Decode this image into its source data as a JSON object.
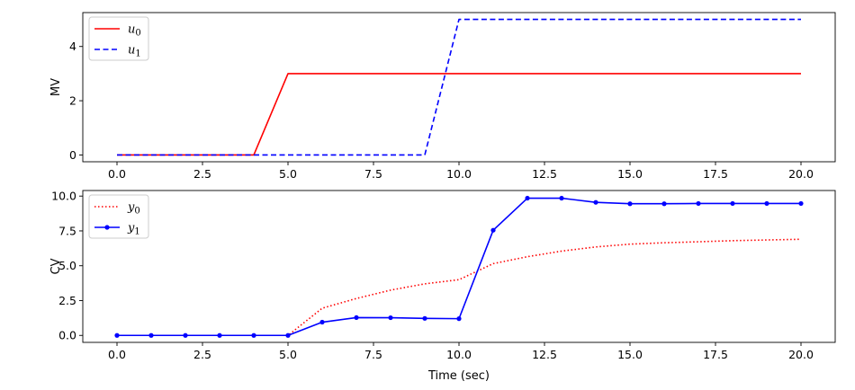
{
  "chart_data": [
    {
      "type": "line",
      "title": "",
      "xlabel": "",
      "ylabel": "MV",
      "xlim": [
        -1,
        21
      ],
      "ylim": [
        -0.25,
        5.25
      ],
      "xticks": [
        0.0,
        2.5,
        5.0,
        7.5,
        10.0,
        12.5,
        15.0,
        17.5,
        20.0
      ],
      "xtick_labels": [
        "0.0",
        "2.5",
        "5.0",
        "7.5",
        "10.0",
        "12.5",
        "15.0",
        "17.5",
        "20.0"
      ],
      "yticks": [
        0,
        2,
        4
      ],
      "ytick_labels": [
        "0",
        "2",
        "4"
      ],
      "grid": false,
      "legend_position": "top-left",
      "series": [
        {
          "name": "u0",
          "legend_base": "u",
          "legend_sub": "0",
          "color": "#ff0000",
          "style": "solid",
          "marker": "none",
          "x": [
            0,
            1,
            2,
            3,
            4,
            5,
            6,
            7,
            8,
            9,
            10,
            11,
            12,
            13,
            14,
            15,
            16,
            17,
            18,
            19,
            20
          ],
          "y": [
            0,
            0,
            0,
            0,
            0,
            3,
            3,
            3,
            3,
            3,
            3,
            3,
            3,
            3,
            3,
            3,
            3,
            3,
            3,
            3,
            3
          ]
        },
        {
          "name": "u1",
          "legend_base": "u",
          "legend_sub": "1",
          "color": "#0000ff",
          "style": "dashed",
          "marker": "none",
          "x": [
            0,
            1,
            2,
            3,
            4,
            5,
            6,
            7,
            8,
            9,
            10,
            11,
            12,
            13,
            14,
            15,
            16,
            17,
            18,
            19,
            20
          ],
          "y": [
            0,
            0,
            0,
            0,
            0,
            0,
            0,
            0,
            0,
            0,
            5,
            5,
            5,
            5,
            5,
            5,
            5,
            5,
            5,
            5,
            5
          ]
        }
      ]
    },
    {
      "type": "line",
      "title": "",
      "xlabel": "Time (sec)",
      "ylabel": "CV",
      "xlim": [
        -1,
        21
      ],
      "ylim": [
        -0.5,
        10.4
      ],
      "xticks": [
        0.0,
        2.5,
        5.0,
        7.5,
        10.0,
        12.5,
        15.0,
        17.5,
        20.0
      ],
      "xtick_labels": [
        "0.0",
        "2.5",
        "5.0",
        "7.5",
        "10.0",
        "12.5",
        "15.0",
        "17.5",
        "20.0"
      ],
      "yticks": [
        0.0,
        2.5,
        5.0,
        7.5,
        10.0
      ],
      "ytick_labels": [
        "0.0",
        "2.5",
        "5.0",
        "7.5",
        "10.0"
      ],
      "grid": false,
      "legend_position": "top-left",
      "series": [
        {
          "name": "y0",
          "legend_base": "y",
          "legend_sub": "0",
          "color": "#ff0000",
          "style": "dotted",
          "marker": "none",
          "x": [
            0,
            1,
            2,
            3,
            4,
            5,
            6,
            7,
            8,
            9,
            10,
            11,
            12,
            13,
            14,
            15,
            16,
            17,
            18,
            19,
            20
          ],
          "y": [
            0,
            0,
            0,
            0,
            0,
            0,
            1.95,
            2.65,
            3.25,
            3.7,
            4.0,
            5.15,
            5.65,
            6.05,
            6.35,
            6.55,
            6.65,
            6.72,
            6.8,
            6.85,
            6.9
          ]
        },
        {
          "name": "y1",
          "legend_base": "y",
          "legend_sub": "1",
          "color": "#0000ff",
          "style": "solid",
          "marker": "circle",
          "x": [
            0,
            1,
            2,
            3,
            4,
            5,
            6,
            7,
            8,
            9,
            10,
            11,
            12,
            13,
            14,
            15,
            16,
            17,
            18,
            19,
            20
          ],
          "y": [
            0,
            0,
            0,
            0,
            0,
            0,
            0.95,
            1.28,
            1.27,
            1.22,
            1.2,
            7.55,
            9.85,
            9.85,
            9.55,
            9.45,
            9.45,
            9.47,
            9.47,
            9.47,
            9.47
          ]
        }
      ]
    }
  ]
}
